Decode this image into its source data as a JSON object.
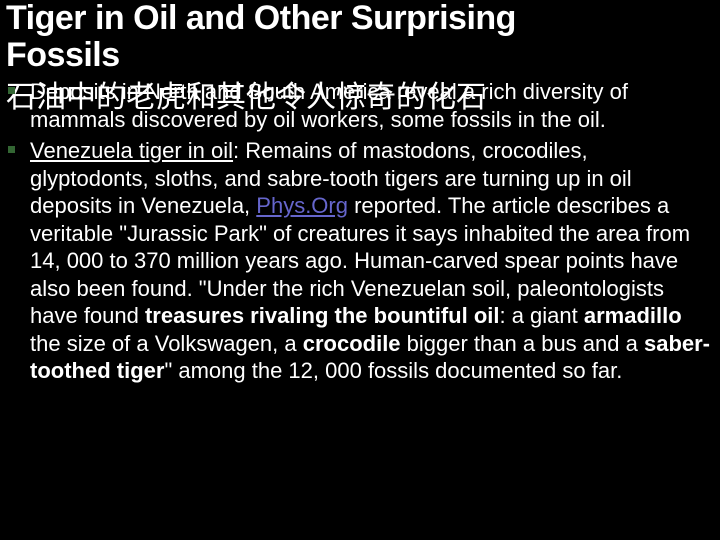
{
  "title_line1": "Tiger in Oil and Other Surprising",
  "title_line2": "Fossils",
  "subtitle_cn": "石油中的老虎和其他令人惊奇的化石",
  "bullet1_text": "Deposits in North and South America reveal a rich diversity of mammals discovered by oil workers, some fossils in the oil.",
  "bullet2_lead": "Venezuela tiger in oil",
  "bullet2_seg1": ":  Remains of mastodons, crocodiles, glyptodonts, sloths, and sabre-tooth tigers are turning up in oil deposits in Venezuela, ",
  "bullet2_link": "Phys.Org",
  "bullet2_seg2": " reported.  The article describes a veritable \"Jurassic Park\" of creatures it says inhabited the area from 14, 000 to 370 million years ago.  Human-carved spear points have also been found.  \"Under the rich Venezuelan soil, paleontologists have found ",
  "bullet2_b1": "treasures rivaling the bountiful oil",
  "bullet2_seg3": ": a giant ",
  "bullet2_b2": "armadillo",
  "bullet2_seg4": " the size of a Volkswagen, a ",
  "bullet2_b3": "crocodile",
  "bullet2_seg5": " bigger than a bus and a ",
  "bullet2_b4": "saber-toothed tiger",
  "bullet2_seg6": "\" among the 12, 000 fossils documented so far.",
  "colors": {
    "background": "#000000",
    "text": "#ffffff",
    "bullet": "#336633",
    "link": "#6666cc"
  },
  "fonts": {
    "title_size": 34,
    "subtitle_size": 30,
    "body_size": 22
  }
}
